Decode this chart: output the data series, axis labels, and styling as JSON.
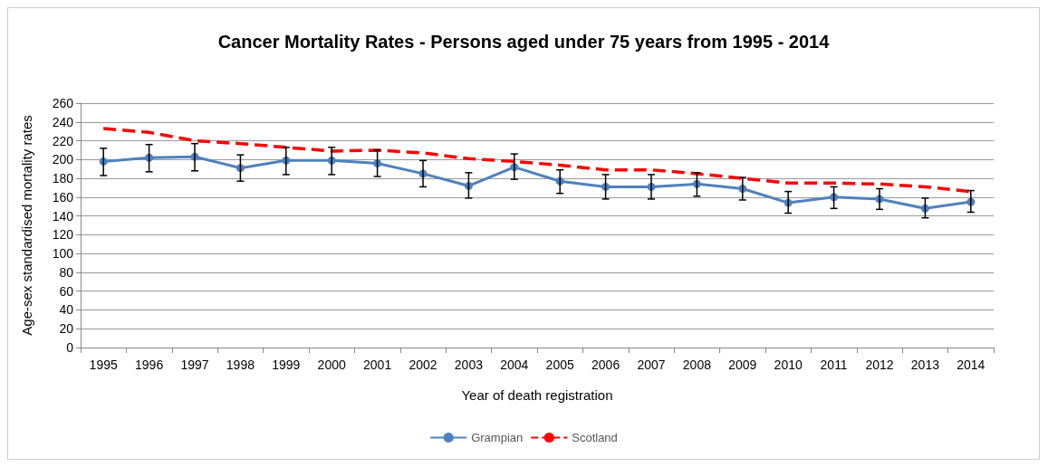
{
  "chart_data": {
    "type": "line",
    "title": "Cancer Mortality Rates - Persons aged under 75 years from 1995 - 2014",
    "xlabel": "Year of death registration",
    "ylabel": "Age-sex standardised mortality rates",
    "categories": [
      "1995",
      "1996",
      "1997",
      "1998",
      "1999",
      "2000",
      "2001",
      "2002",
      "2003",
      "2004",
      "2005",
      "2006",
      "2007",
      "2008",
      "2009",
      "2010",
      "2011",
      "2012",
      "2013",
      "2014"
    ],
    "series": [
      {
        "name": "Grampian",
        "color": "#4f81bd",
        "marker": "circle",
        "line_style": "solid",
        "values": [
          198,
          202,
          203,
          191,
          199,
          199,
          196,
          185,
          172,
          192,
          177,
          171,
          171,
          174,
          169,
          154,
          160,
          158,
          148,
          155
        ],
        "errors": [
          [
            183,
            212
          ],
          [
            187,
            216
          ],
          [
            188,
            217
          ],
          [
            177,
            205
          ],
          [
            184,
            213
          ],
          [
            184,
            213
          ],
          [
            182,
            210
          ],
          [
            171,
            199
          ],
          [
            159,
            186
          ],
          [
            179,
            206
          ],
          [
            164,
            189
          ],
          [
            158,
            184
          ],
          [
            158,
            184
          ],
          [
            161,
            186
          ],
          [
            157,
            181
          ],
          [
            143,
            166
          ],
          [
            148,
            171
          ],
          [
            147,
            169
          ],
          [
            138,
            159
          ],
          [
            144,
            167
          ]
        ]
      },
      {
        "name": "Scotland",
        "color": "#ff0000",
        "marker": "none",
        "line_style": "dashed",
        "values": [
          233,
          229,
          220,
          217,
          213,
          209,
          210,
          207,
          201,
          198,
          194,
          189,
          189,
          185,
          180,
          175,
          175,
          174,
          171,
          166
        ]
      }
    ],
    "ylim": [
      0,
      260
    ],
    "yticks": [
      0,
      20,
      40,
      60,
      80,
      100,
      120,
      140,
      160,
      180,
      200,
      220,
      240,
      260
    ],
    "grid": "y",
    "legend": "bottom"
  }
}
